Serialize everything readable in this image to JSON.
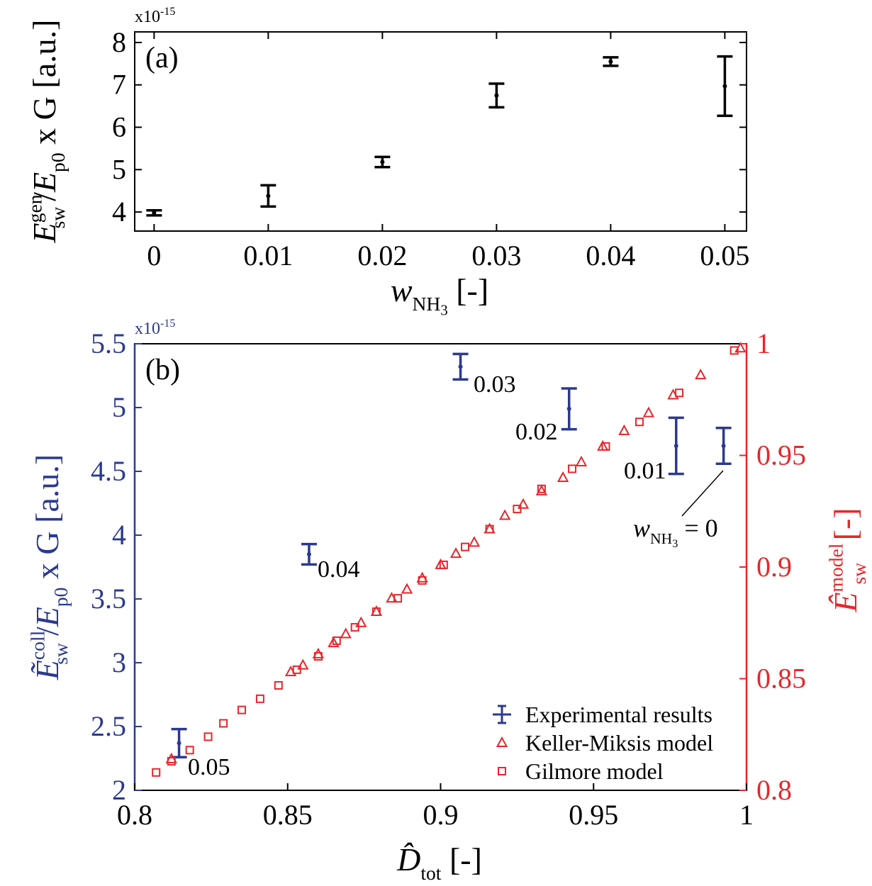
{
  "chart_data": [
    {
      "type": "errorbar",
      "panel_label": "(a)",
      "exponent_label": {
        "base": "x10",
        "power": "-15"
      },
      "xlabel": [
        "w",
        "NH",
        "3",
        " [-]"
      ],
      "ylabel": [
        "E",
        "gen",
        "sw",
        "/",
        "E",
        "p0",
        " x G [a.u.]"
      ],
      "x": [
        0,
        0.01,
        0.02,
        0.03,
        0.04,
        0.05
      ],
      "series": [
        {
          "color": "#000000",
          "values": [
            3.98,
            4.38,
            5.18,
            6.75,
            7.55,
            6.97
          ],
          "errors": [
            0.06,
            0.25,
            0.12,
            0.28,
            0.1,
            0.7
          ]
        }
      ],
      "xlim": [
        -0.0017,
        0.0519
      ],
      "ylim": [
        3.55,
        8.25
      ],
      "xticks": [
        0,
        0.01,
        0.02,
        0.03,
        0.04,
        0.05
      ],
      "yticks": [
        4,
        5,
        6,
        7,
        8
      ]
    },
    {
      "type": "errorbar",
      "panel_label": "(b)",
      "exponent_label": {
        "base": "x10",
        "power": "-15"
      },
      "xlabel": [
        "D̂",
        "tot",
        " [-]"
      ],
      "ylabel": [
        "Ẽ",
        "coll",
        "sw",
        "/",
        "E",
        "p0",
        " x G [a.u.]"
      ],
      "y2label": [
        "Ê",
        "model",
        "sw",
        " [-]"
      ],
      "series": [
        {
          "name": "Experimental results",
          "color": "#2b3990",
          "marker": "errorbar",
          "x": [
            0.8145,
            0.857,
            0.9065,
            0.942,
            0.977,
            0.9925
          ],
          "values": [
            2.37,
            3.85,
            5.32,
            4.99,
            4.7,
            4.7
          ],
          "errors": [
            0.11,
            0.08,
            0.1,
            0.16,
            0.22,
            0.14
          ]
        },
        {
          "name": "Keller-Miksis model",
          "color": "#e8262a",
          "marker": "triangle",
          "axis": "y2",
          "x": [
            0.812,
            0.851,
            0.855,
            0.86,
            0.865,
            0.869,
            0.874,
            0.879,
            0.884,
            0.889,
            0.894,
            0.9,
            0.905,
            0.911,
            0.916,
            0.921,
            0.927,
            0.933,
            0.94,
            0.946,
            0.953,
            0.96,
            0.968,
            0.976,
            0.985,
            0.998
          ],
          "values": [
            0.814,
            0.853,
            0.856,
            0.861,
            0.866,
            0.87,
            0.875,
            0.88,
            0.886,
            0.89,
            0.895,
            0.901,
            0.906,
            0.911,
            0.917,
            0.923,
            0.928,
            0.934,
            0.94,
            0.947,
            0.954,
            0.961,
            0.969,
            0.977,
            0.986,
            0.998
          ]
        },
        {
          "name": "Gilmore model",
          "color": "#e8262a",
          "marker": "square",
          "axis": "y2",
          "x": [
            0.807,
            0.812,
            0.818,
            0.824,
            0.829,
            0.835,
            0.841,
            0.847,
            0.853,
            0.86,
            0.866,
            0.872,
            0.879,
            0.886,
            0.894,
            0.901,
            0.908,
            0.916,
            0.925,
            0.933,
            0.943,
            0.954,
            0.965,
            0.978,
            0.996
          ],
          "values": [
            0.808,
            0.813,
            0.818,
            0.824,
            0.83,
            0.836,
            0.841,
            0.847,
            0.854,
            0.86,
            0.867,
            0.873,
            0.88,
            0.886,
            0.894,
            0.901,
            0.909,
            0.917,
            0.926,
            0.935,
            0.944,
            0.954,
            0.965,
            0.978,
            0.997
          ]
        }
      ],
      "annotations": [
        "0.05",
        "0.04",
        "0.03",
        "0.02",
        "0.01"
      ],
      "zero_annotation": [
        "w",
        "NH",
        "3",
        " = 0"
      ],
      "xlim": [
        0.8,
        1
      ],
      "ylim": [
        2,
        5.5
      ],
      "y2lim": [
        0.8,
        1
      ],
      "xticks": [
        0.8,
        0.85,
        0.9,
        0.95,
        1
      ],
      "yticks": [
        2,
        2.5,
        3,
        3.5,
        4,
        4.5,
        5,
        5.5
      ],
      "y2ticks": [
        0.8,
        0.85,
        0.9,
        0.95,
        1
      ],
      "left_axis_color": "#2b3990",
      "right_axis_color": "#e8262a",
      "legend": "lower right"
    }
  ]
}
